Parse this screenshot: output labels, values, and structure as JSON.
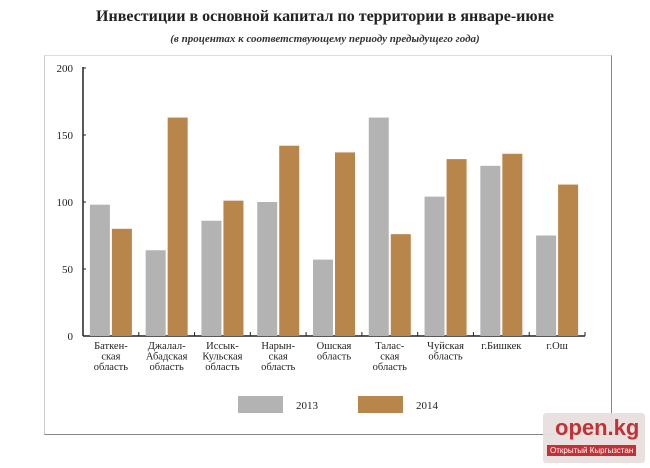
{
  "chart_data": {
    "type": "bar",
    "title": "Инвестиции в основной капитал по территории в январе-июне",
    "subtitle": "(в процентах к соответствующему периоду предыдущего года)",
    "categories": [
      [
        "Баткен-",
        "ская",
        "область"
      ],
      [
        "Джалал-",
        "Абадская",
        "область"
      ],
      [
        "Иссык-",
        "Кульская",
        "область"
      ],
      [
        "Нарын-",
        "ская",
        "область"
      ],
      [
        "Ошская",
        "область"
      ],
      [
        "Талас-",
        "ская",
        "область"
      ],
      [
        "Чуйская",
        "область"
      ],
      [
        "г.Бишкек"
      ],
      [
        "г.Ош"
      ]
    ],
    "series": [
      {
        "name": "2013",
        "color": "#b3b3b3",
        "values": [
          98,
          64,
          86,
          100,
          57,
          163,
          104,
          127,
          75
        ]
      },
      {
        "name": "2014",
        "color": "#b8864a",
        "values": [
          80,
          163,
          101,
          142,
          137,
          76,
          132,
          136,
          113
        ]
      }
    ],
    "ylim": [
      0,
      200
    ],
    "yticks": [
      0,
      50,
      100,
      150,
      200
    ],
    "legend": "bottom",
    "grid": false
  },
  "watermark": {
    "logo": "open.kg",
    "tagline": "Открытый Кыргызстан"
  }
}
